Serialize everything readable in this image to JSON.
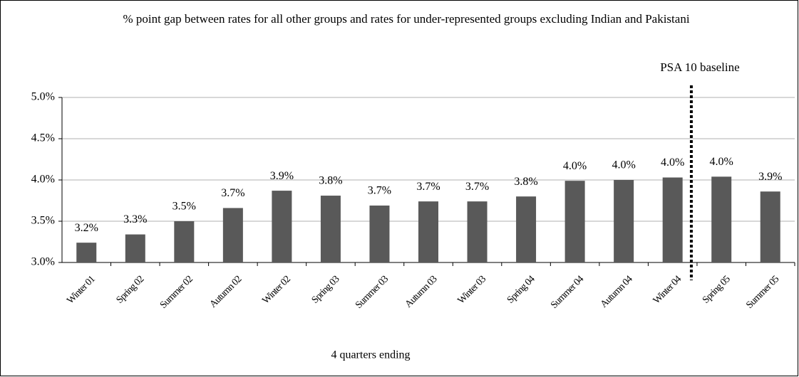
{
  "chart_data": {
    "type": "bar",
    "title": "% point gap between rates for all other groups and rates for under-represented groups excluding Indian and Pakistani",
    "x_label": "4 quarters ending",
    "annotation": "PSA 10 baseline",
    "categories": [
      "Winter 01",
      "Spring 02",
      "Summer 02",
      "Autumn 02",
      "Winter 02",
      "Spring 03",
      "Summer 03",
      "Autumn 03",
      "Winter 03",
      "Spring 04",
      "Summer 04",
      "Autumn 04",
      "Winter 04",
      "Spring 05",
      "Summer 05"
    ],
    "values": [
      3.24,
      3.34,
      3.5,
      3.66,
      3.87,
      3.81,
      3.69,
      3.74,
      3.74,
      3.8,
      3.99,
      4.0,
      4.03,
      4.04,
      3.86
    ],
    "value_labels": [
      "3.2%",
      "3.3%",
      "3.5%",
      "3.7%",
      "3.9%",
      "3.8%",
      "3.7%",
      "3.7%",
      "3.7%",
      "3.8%",
      "4.0%",
      "4.0%",
      "4.0%",
      "4.0%",
      "3.9%"
    ],
    "color": "#595959",
    "ylim": [
      3.0,
      5.0
    ],
    "yticks": [
      {
        "value": 3.0,
        "label": "3.0%"
      },
      {
        "value": 3.5,
        "label": "3.5%"
      },
      {
        "value": 4.0,
        "label": "4.0%"
      },
      {
        "value": 4.5,
        "label": "4.5%"
      },
      {
        "value": 5.0,
        "label": "5.0%"
      }
    ],
    "grid": true
  }
}
